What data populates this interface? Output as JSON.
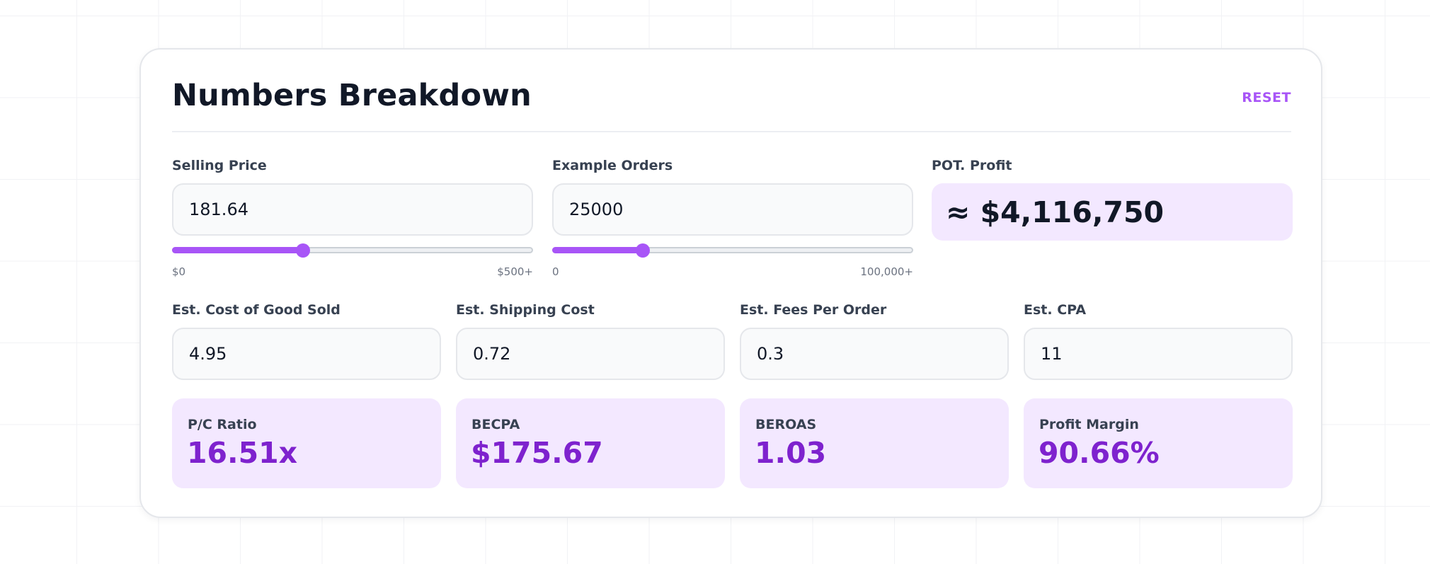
{
  "header": {
    "title": "Numbers Breakdown",
    "reset_label": "RESET"
  },
  "selling_price": {
    "label": "Selling Price",
    "value": "181.64",
    "slider_fraction": 0.363,
    "range_min": "$0",
    "range_max": "$500+"
  },
  "example_orders": {
    "label": "Example Orders",
    "value": "25000",
    "slider_fraction": 0.25,
    "range_min": "0",
    "range_max": "100,000+"
  },
  "pot_profit": {
    "label": "POT. Profit",
    "value": "≈ $4,116,750"
  },
  "costs": [
    {
      "label": "Est. Cost of Good Sold",
      "value": "4.95"
    },
    {
      "label": "Est. Shipping Cost",
      "value": "0.72"
    },
    {
      "label": "Est. Fees Per Order",
      "value": "0.3"
    },
    {
      "label": "Est. CPA",
      "value": "11"
    }
  ],
  "stats": [
    {
      "label": "P/C Ratio",
      "value": "16.51x"
    },
    {
      "label": "BECPA",
      "value": "$175.67"
    },
    {
      "label": "BEROAS",
      "value": "1.03"
    },
    {
      "label": "Profit Margin",
      "value": "90.66%"
    }
  ],
  "colors": {
    "accent": "#a855f7",
    "accent_dark": "#7e22ce",
    "stat_background": "#f3e8ff",
    "text_primary": "#111827"
  }
}
